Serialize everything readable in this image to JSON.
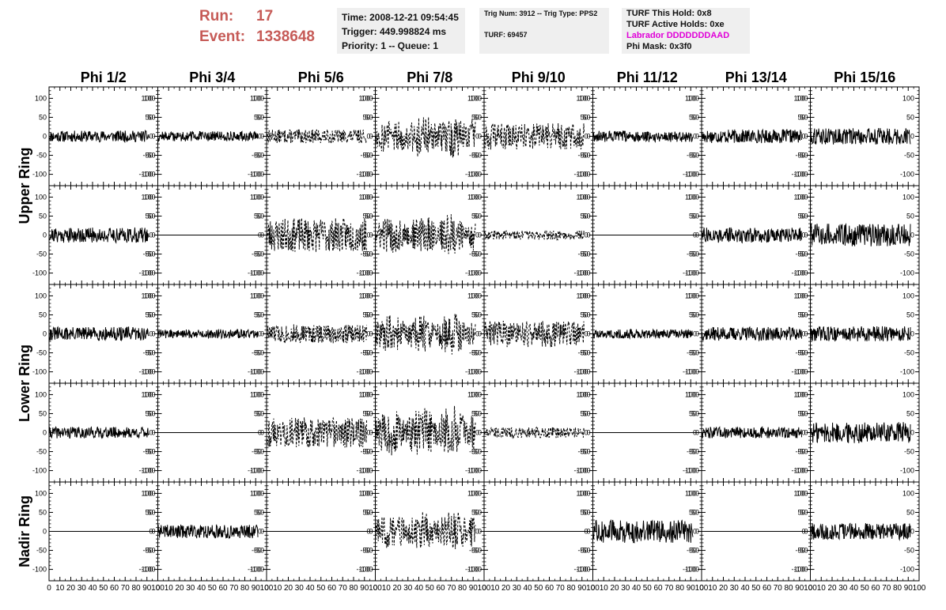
{
  "header": {
    "run_label": "Run:",
    "run_value": "17",
    "event_label": "Event:",
    "event_value": "1338648",
    "time_line": "Time: 2008-12-21 09:54:45",
    "trigger_line": "Trigger: 449.998824 ms",
    "priority_line": "Priority: 1 -- Queue: 1",
    "trig_line": "Trig Num: 3912 -- Trig Type: PPS2",
    "turf_line": "TURF: 69457",
    "turf_hold_line": "TURF This Hold: 0x8",
    "turf_active_line": "TURF Active Holds: 0xe",
    "labrador_line": "Labrador DDDDDDDAAD",
    "phi_mask_line": "Phi Mask: 0x3f0",
    "labrador_color": "#e000d8",
    "run_color": "#c65b57"
  },
  "chart_data": {
    "type": "line",
    "columns": [
      "Phi 1/2",
      "Phi 3/4",
      "Phi 5/6",
      "Phi 7/8",
      "Phi 9/10",
      "Phi 11/12",
      "Phi 13/14",
      "Phi 15/16"
    ],
    "ring_labels": [
      {
        "label": "Upper Ring",
        "rows": [
          0,
          1
        ]
      },
      {
        "label": "Lower Ring",
        "rows": [
          2,
          3
        ]
      },
      {
        "label": "Nadir Ring",
        "rows": [
          4
        ]
      }
    ],
    "xlim": [
      0,
      100
    ],
    "ylim": [
      -130,
      130
    ],
    "y_ticks": [
      -100,
      -50,
      0,
      50,
      100
    ],
    "x_ticks": [
      0,
      10,
      20,
      30,
      40,
      50,
      60,
      70,
      80,
      90,
      100
    ],
    "x_tick_labels": [
      "0",
      "10",
      "20",
      "30",
      "40",
      "50",
      "60",
      "70",
      "80",
      "90",
      "100"
    ],
    "y_tick_labels": [
      "-100",
      "-50",
      "0",
      "50",
      "100"
    ],
    "x_tick_labels_by_column": [
      [
        "0",
        "10",
        "20",
        "30",
        "40",
        "50",
        "60",
        "70",
        "80",
        "90",
        "100"
      ],
      [
        "0",
        "10",
        "20",
        "30",
        "40",
        "50",
        "60",
        "70",
        "80",
        "90",
        "100"
      ],
      [
        "0",
        "10",
        "20",
        "30",
        "40",
        "50",
        "60",
        "70",
        "80",
        "90",
        "100"
      ],
      [
        "0",
        "10",
        "20",
        "30",
        "40",
        "50",
        "60",
        "70",
        "80",
        "90",
        "100"
      ],
      [
        "0",
        "10",
        "20",
        "30",
        "40",
        "50",
        "60",
        "70",
        "80",
        "90",
        "100"
      ],
      [
        "0",
        "10",
        "20",
        "30",
        "40",
        "50",
        "60",
        "70",
        "80",
        "90",
        "100"
      ],
      [
        "0",
        "10",
        "20",
        "30",
        "40",
        "50",
        "60",
        "70",
        "80",
        "90",
        "100"
      ],
      [
        "0",
        "10",
        "20",
        "30",
        "40",
        "50",
        "60",
        "70",
        "80",
        "90",
        "100"
      ]
    ],
    "waveforms": [
      [
        {
          "kind": "noise",
          "amp": 15,
          "x_end": 92,
          "dashed": false,
          "seed": 11
        },
        {
          "kind": "noise",
          "amp": 13,
          "x_end": 92,
          "dashed": false,
          "seed": 12
        },
        {
          "kind": "noise",
          "amp": 18,
          "x_end": 92,
          "dashed": true,
          "seed": 13
        },
        {
          "kind": "burst",
          "amp": 65,
          "x_end": 92,
          "dashed": true,
          "seed": 14
        },
        {
          "kind": "noise",
          "amp": 35,
          "x_end": 92,
          "dashed": true,
          "seed": 15
        },
        {
          "kind": "noise",
          "amp": 15,
          "x_end": 92,
          "dashed": false,
          "seed": 16
        },
        {
          "kind": "noise",
          "amp": 18,
          "x_end": 92,
          "dashed": false,
          "seed": 17
        },
        {
          "kind": "noise",
          "amp": 22,
          "x_end": 92,
          "dashed": false,
          "seed": 18
        }
      ],
      [
        {
          "kind": "noise",
          "amp": 20,
          "x_end": 92,
          "dashed": false,
          "seed": 21
        },
        {
          "kind": "flat",
          "amp": 0,
          "x_end": 100,
          "dashed": false,
          "seed": 22
        },
        {
          "kind": "noise",
          "amp": 45,
          "x_end": 92,
          "dashed": true,
          "seed": 23
        },
        {
          "kind": "burst",
          "amp": 60,
          "x_end": 92,
          "dashed": true,
          "seed": 24
        },
        {
          "kind": "noise",
          "amp": 12,
          "x_end": 92,
          "dashed": true,
          "seed": 25
        },
        {
          "kind": "flat",
          "amp": 0,
          "x_end": 100,
          "dashed": false,
          "seed": 26
        },
        {
          "kind": "noise",
          "amp": 20,
          "x_end": 92,
          "dashed": false,
          "seed": 27
        },
        {
          "kind": "noise",
          "amp": 30,
          "x_end": 92,
          "dashed": false,
          "seed": 28
        }
      ],
      [
        {
          "kind": "noise",
          "amp": 18,
          "x_end": 92,
          "dashed": false,
          "seed": 31
        },
        {
          "kind": "noise",
          "amp": 12,
          "x_end": 92,
          "dashed": false,
          "seed": 32
        },
        {
          "kind": "noise",
          "amp": 25,
          "x_end": 92,
          "dashed": true,
          "seed": 33
        },
        {
          "kind": "burst",
          "amp": 60,
          "x_end": 92,
          "dashed": true,
          "seed": 34
        },
        {
          "kind": "noise",
          "amp": 35,
          "x_end": 92,
          "dashed": true,
          "seed": 35
        },
        {
          "kind": "noise",
          "amp": 12,
          "x_end": 92,
          "dashed": false,
          "seed": 36
        },
        {
          "kind": "noise",
          "amp": 18,
          "x_end": 92,
          "dashed": false,
          "seed": 37
        },
        {
          "kind": "noise",
          "amp": 20,
          "x_end": 92,
          "dashed": false,
          "seed": 38
        }
      ],
      [
        {
          "kind": "noise",
          "amp": 15,
          "x_end": 92,
          "dashed": false,
          "seed": 41
        },
        {
          "kind": "flat",
          "amp": 0,
          "x_end": 100,
          "dashed": false,
          "seed": 42
        },
        {
          "kind": "noise",
          "amp": 40,
          "x_end": 92,
          "dashed": true,
          "seed": 43
        },
        {
          "kind": "burst",
          "amp": 75,
          "x_end": 92,
          "dashed": true,
          "seed": 44
        },
        {
          "kind": "noise",
          "amp": 14,
          "x_end": 92,
          "dashed": true,
          "seed": 45
        },
        {
          "kind": "flat",
          "amp": 0,
          "x_end": 100,
          "dashed": false,
          "seed": 46
        },
        {
          "kind": "noise",
          "amp": 15,
          "x_end": 92,
          "dashed": false,
          "seed": 47
        },
        {
          "kind": "noise",
          "amp": 28,
          "x_end": 92,
          "dashed": false,
          "seed": 48
        }
      ],
      [
        {
          "kind": "flat",
          "amp": 0,
          "x_end": 100,
          "dashed": false,
          "seed": 51
        },
        {
          "kind": "noise",
          "amp": 18,
          "x_end": 92,
          "dashed": false,
          "seed": 52
        },
        {
          "kind": "flat",
          "amp": 0,
          "x_end": 100,
          "dashed": false,
          "seed": 53
        },
        {
          "kind": "burst",
          "amp": 60,
          "x_end": 92,
          "dashed": true,
          "seed": 54
        },
        {
          "kind": "flat",
          "amp": 0,
          "x_end": 100,
          "dashed": false,
          "seed": 55
        },
        {
          "kind": "noise",
          "amp": 30,
          "x_end": 92,
          "dashed": false,
          "seed": 56
        },
        {
          "kind": "flat",
          "amp": 0,
          "x_end": 100,
          "dashed": false,
          "seed": 57
        },
        {
          "kind": "noise",
          "amp": 22,
          "x_end": 92,
          "dashed": false,
          "seed": 58
        }
      ]
    ]
  }
}
